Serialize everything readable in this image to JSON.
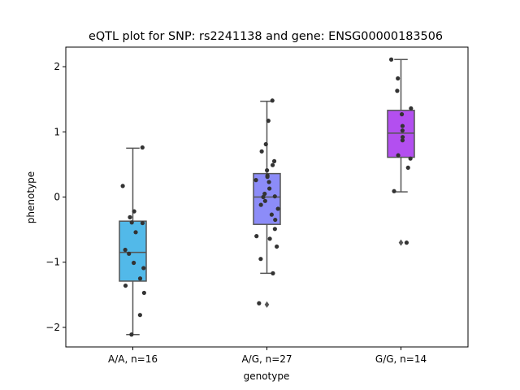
{
  "chart_data": {
    "type": "boxplot",
    "title": "eQTL plot for SNP: rs2241138 and gene: ENSG00000183506",
    "xlabel": "genotype",
    "ylabel": "phenotype",
    "ylim": [
      -2.3,
      2.3
    ],
    "yticks": [
      -2,
      -1,
      0,
      1,
      2
    ],
    "ytick_labels": [
      "−2",
      "−1",
      "0",
      "1",
      "2"
    ],
    "categories": [
      "A/A, n=16",
      "A/G, n=27",
      "G/G, n=14"
    ],
    "grid": false,
    "boxes": [
      {
        "category": "A/A, n=16",
        "color": "#52b9e9",
        "whisker_low": -2.11,
        "q1": -1.29,
        "median": -0.85,
        "q3": -0.37,
        "whisker_high": 0.75,
        "outliers": []
      },
      {
        "category": "A/G, n=27",
        "color": "#8c8cf8",
        "whisker_low": -1.17,
        "q1": -0.42,
        "median": 0.0,
        "q3": 0.36,
        "whisker_high": 1.47,
        "outliers": [
          -1.65
        ]
      },
      {
        "category": "G/G, n=14",
        "color": "#b34ff0",
        "whisker_low": 0.08,
        "q1": 0.61,
        "median": 0.98,
        "q3": 1.33,
        "whisker_high": 2.11,
        "outliers": [
          -0.7
        ]
      }
    ],
    "points": [
      {
        "category": "A/A, n=16",
        "values": [
          0.76,
          0.17,
          -0.22,
          -0.31,
          -0.39,
          -0.54,
          -0.81,
          -0.87,
          -1.01,
          -1.09,
          -1.25,
          -1.36,
          -1.47,
          -1.81,
          -2.11,
          -0.4
        ]
      },
      {
        "category": "A/G, n=27",
        "values": [
          1.48,
          1.17,
          0.81,
          0.7,
          0.55,
          0.49,
          0.41,
          0.33,
          0.31,
          0.26,
          0.23,
          0.13,
          0.05,
          0.01,
          0.0,
          -0.06,
          -0.12,
          -0.18,
          -0.27,
          -0.35,
          -0.49,
          -0.6,
          -0.64,
          -0.76,
          -0.95,
          -1.17,
          -1.63
        ]
      },
      {
        "category": "G/G, n=14",
        "values": [
          2.11,
          1.82,
          1.63,
          1.36,
          1.27,
          1.09,
          1.02,
          0.92,
          0.87,
          0.64,
          0.59,
          0.45,
          0.09,
          -0.7
        ]
      }
    ],
    "point_color": "#333333",
    "line_color": "#555555"
  }
}
